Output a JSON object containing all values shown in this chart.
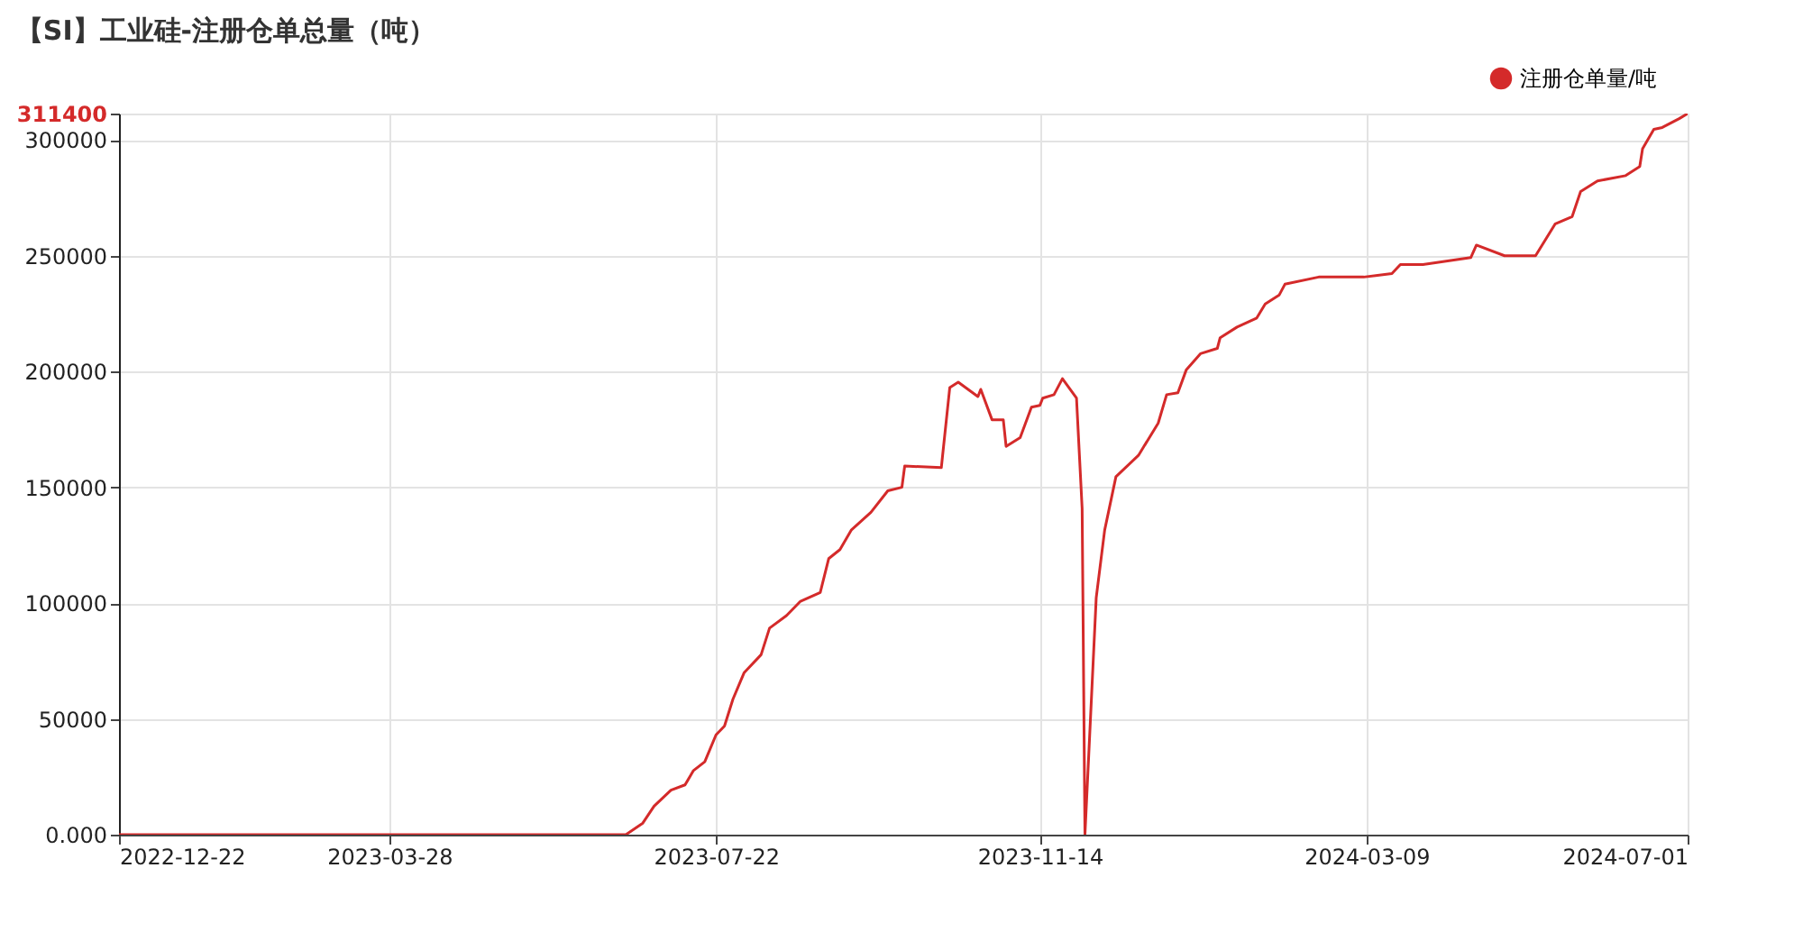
{
  "chart_data": {
    "type": "line",
    "title": "【SI】工业硅-注册仓单总量（吨）",
    "x": [
      "2022-12-22",
      "2023-06-20",
      "2023-06-26",
      "2023-06-30",
      "2023-07-06",
      "2023-07-11",
      "2023-07-14",
      "2023-07-18",
      "2023-07-22",
      "2023-07-25",
      "2023-07-28",
      "2023-08-01",
      "2023-08-07",
      "2023-08-10",
      "2023-08-16",
      "2023-08-21",
      "2023-08-28",
      "2023-08-31",
      "2023-09-04",
      "2023-09-08",
      "2023-09-15",
      "2023-09-21",
      "2023-09-26",
      "2023-09-27",
      "2023-10-10",
      "2023-10-13",
      "2023-10-16",
      "2023-10-23",
      "2023-10-24",
      "2023-10-28",
      "2023-11-01",
      "2023-11-02",
      "2023-11-07",
      "2023-11-11",
      "2023-11-14",
      "2023-11-15",
      "2023-11-19",
      "2023-11-22",
      "2023-11-27",
      "2023-11-29",
      "2023-11-30",
      "2023-12-04",
      "2023-12-07",
      "2023-12-11",
      "2023-12-19",
      "2023-12-26",
      "2023-12-29",
      "2024-01-02",
      "2024-01-05",
      "2024-01-10",
      "2024-01-16",
      "2024-01-17",
      "2024-01-23",
      "2024-01-30",
      "2024-02-02",
      "2024-02-07",
      "2024-02-09",
      "2024-02-21",
      "2024-03-08",
      "2024-03-18",
      "2024-03-21",
      "2024-03-29",
      "2024-04-15",
      "2024-04-17",
      "2024-04-27",
      "2024-05-08",
      "2024-05-15",
      "2024-05-21",
      "2024-05-24",
      "2024-05-30",
      "2024-06-09",
      "2024-06-14",
      "2024-06-15",
      "2024-06-19",
      "2024-06-22",
      "2024-06-28",
      "2024-07-01"
    ],
    "series": [
      {
        "name": "注册仓单量/吨",
        "color": "#d42a2a",
        "values": [
          0,
          0,
          5000,
          12300,
          19200,
          21500,
          27700,
          31500,
          43100,
          46900,
          58500,
          70000,
          77700,
          89200,
          94600,
          100800,
          104600,
          119200,
          123100,
          131500,
          139200,
          148500,
          150000,
          159200,
          158500,
          193100,
          195400,
          189200,
          192300,
          179200,
          179200,
          167700,
          171500,
          184600,
          185400,
          188500,
          190000,
          196900,
          188500,
          140800,
          0,
          102300,
          131500,
          154600,
          163800,
          177700,
          190000,
          190800,
          200800,
          207700,
          210000,
          214600,
          219200,
          223100,
          229200,
          233100,
          237700,
          240800,
          240800,
          242300,
          246200,
          246200,
          249200,
          254600,
          250000,
          250000,
          263800,
          266900,
          277700,
          282300,
          284600,
          288500,
          296200,
          304600,
          305400,
          309200,
          311400
        ]
      }
    ],
    "xlim": [
      "2022-12-22",
      "2024-07-01"
    ],
    "xticks": [
      "2022-12-22",
      "2023-03-28",
      "2023-07-22",
      "2023-11-14",
      "2024-03-09",
      "2024-07-01"
    ],
    "ylim": [
      0,
      311400
    ],
    "yticks": [
      {
        "value": 0,
        "label": "0.000"
      },
      50000,
      100000,
      150000,
      200000,
      250000,
      300000,
      311400
    ],
    "grid": true,
    "legend": "top right",
    "marker": "none",
    "line_style": "solid"
  }
}
